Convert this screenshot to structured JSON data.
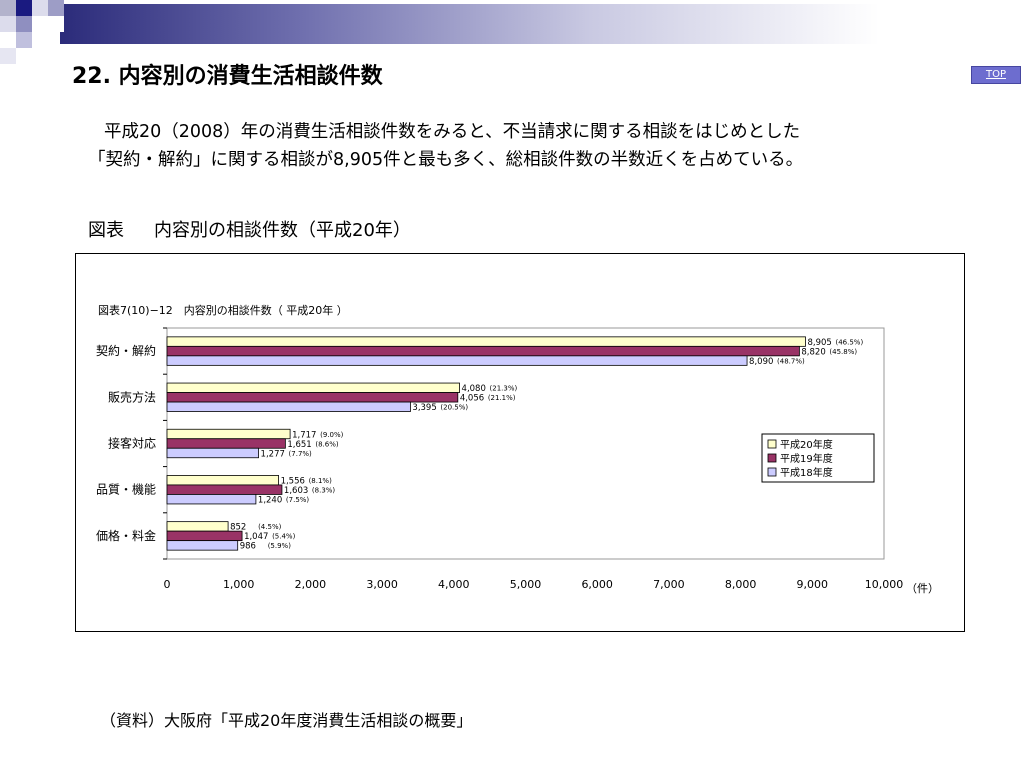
{
  "page": {
    "title": "22. 内容別の消費生活相談件数",
    "top_link": "TOP",
    "description_line1": "平成20（2008）年の消費生活相談件数をみると、不当請求に関する相談をはじめとした",
    "description_line2": "「契約・解約」に関する相談が8,905件と最も多く、総相談件数の半数近くを占めている。",
    "figure_label": "図表",
    "figure_title": "内容別の相談件数（平成20年）",
    "source": "（資料）大阪府「平成20年度消費生活相談の概要」"
  },
  "chart_data": {
    "type": "bar",
    "orientation": "horizontal",
    "title": "図表7(10)−12　内容別の相談件数（ 平成20年 ）",
    "unit_label": "（件）",
    "categories": [
      "契約・解約",
      "販売方法",
      "接客対応",
      "品質・機能",
      "価格・料金"
    ],
    "series": [
      {
        "name": "平成20年度",
        "color": "#ffffcc",
        "values": [
          8905,
          4080,
          1717,
          1556,
          852
        ],
        "labels": [
          "8,905",
          "4,080",
          "1,717",
          "1,556",
          "852"
        ],
        "percents": [
          "(46.5%)",
          "(21.3%)",
          "(9.0%)",
          "(8.1%)",
          "(4.5%)"
        ]
      },
      {
        "name": "平成19年度",
        "color": "#993366",
        "values": [
          8820,
          4056,
          1651,
          1603,
          1047
        ],
        "labels": [
          "8,820",
          "4,056",
          "1,651",
          "1,603",
          "1,047"
        ],
        "percents": [
          "(45.8%)",
          "(21.1%)",
          "(8.6%)",
          "(8.3%)",
          "(5.4%)"
        ]
      },
      {
        "name": "平成18年度",
        "color": "#ccccff",
        "values": [
          8090,
          3395,
          1277,
          1240,
          986
        ],
        "labels": [
          "8,090",
          "3,395",
          "1,277",
          "1,240",
          "986"
        ],
        "percents": [
          "(48.7%)",
          "(20.5%)",
          "(7.7%)",
          "(7.5%)",
          "(5.9%)"
        ]
      }
    ],
    "xlim": [
      0,
      10000
    ],
    "ticks": [
      0,
      1000,
      2000,
      3000,
      4000,
      5000,
      6000,
      7000,
      8000,
      9000,
      10000
    ],
    "tick_labels": [
      "0",
      "1,000",
      "2,000",
      "3,000",
      "4,000",
      "5,000",
      "6,000",
      "7,000",
      "8,000",
      "9,000",
      "10,000"
    ],
    "legend_position": "right",
    "grid": false
  }
}
